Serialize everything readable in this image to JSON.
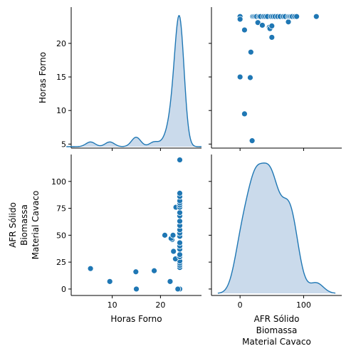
{
  "chart_data": {
    "type": "pairplot",
    "variables": [
      "Horas Forno",
      "AFR Sólido\nBiomassa\nMaterial Cavaco"
    ],
    "axes": {
      "horas": {
        "label": "Horas Forno",
        "ticks": [
          5,
          10,
          15,
          20
        ],
        "range": [
          1.5,
          28.5
        ]
      },
      "afr": {
        "label_lines": [
          "AFR Sólido",
          "Biomassa",
          "Material Cavaco"
        ],
        "ticks": [
          0,
          25,
          50,
          75,
          100
        ],
        "range": [
          -6,
          125
        ]
      },
      "afr_x": {
        "ticks": [
          0,
          100
        ],
        "range": [
          -45,
          160
        ]
      }
    },
    "color": "#1f77b4",
    "kde_fill": "#a6c2de",
    "points": [
      {
        "horas": 24.0,
        "afr": 0
      },
      {
        "horas": 23.6,
        "afr": 0
      },
      {
        "horas": 22.0,
        "afr": 7
      },
      {
        "horas": 9.5,
        "afr": 7
      },
      {
        "horas": 14.9,
        "afr": 16
      },
      {
        "horas": 15.0,
        "afr": 0
      },
      {
        "horas": 18.7,
        "afr": 17
      },
      {
        "horas": 5.5,
        "afr": 19
      },
      {
        "horas": 24.0,
        "afr": 20
      },
      {
        "horas": 24.0,
        "afr": 22
      },
      {
        "horas": 24.0,
        "afr": 24
      },
      {
        "horas": 24.0,
        "afr": 26
      },
      {
        "horas": 23.1,
        "afr": 28
      },
      {
        "horas": 24.0,
        "afr": 30
      },
      {
        "horas": 24.0,
        "afr": 32
      },
      {
        "horas": 22.7,
        "afr": 35
      },
      {
        "horas": 24.0,
        "afr": 37
      },
      {
        "horas": 24.0,
        "afr": 40
      },
      {
        "horas": 24.0,
        "afr": 43
      },
      {
        "horas": 22.4,
        "afr": 46
      },
      {
        "horas": 22.2,
        "afr": 47
      },
      {
        "horas": 24.0,
        "afr": 49
      },
      {
        "horas": 20.9,
        "afr": 50
      },
      {
        "horas": 22.6,
        "afr": 50
      },
      {
        "horas": 24.0,
        "afr": 52
      },
      {
        "horas": 24.0,
        "afr": 55
      },
      {
        "horas": 24.0,
        "afr": 59
      },
      {
        "horas": 24.0,
        "afr": 63
      },
      {
        "horas": 24.0,
        "afr": 68
      },
      {
        "horas": 24.0,
        "afr": 71
      },
      {
        "horas": 23.2,
        "afr": 76
      },
      {
        "horas": 24.0,
        "afr": 76
      },
      {
        "horas": 24.0,
        "afr": 78
      },
      {
        "horas": 24.0,
        "afr": 80
      },
      {
        "horas": 24.0,
        "afr": 82
      },
      {
        "horas": 24.0,
        "afr": 86
      },
      {
        "horas": 24.0,
        "afr": 89
      },
      {
        "horas": 24.0,
        "afr": 120
      }
    ]
  }
}
